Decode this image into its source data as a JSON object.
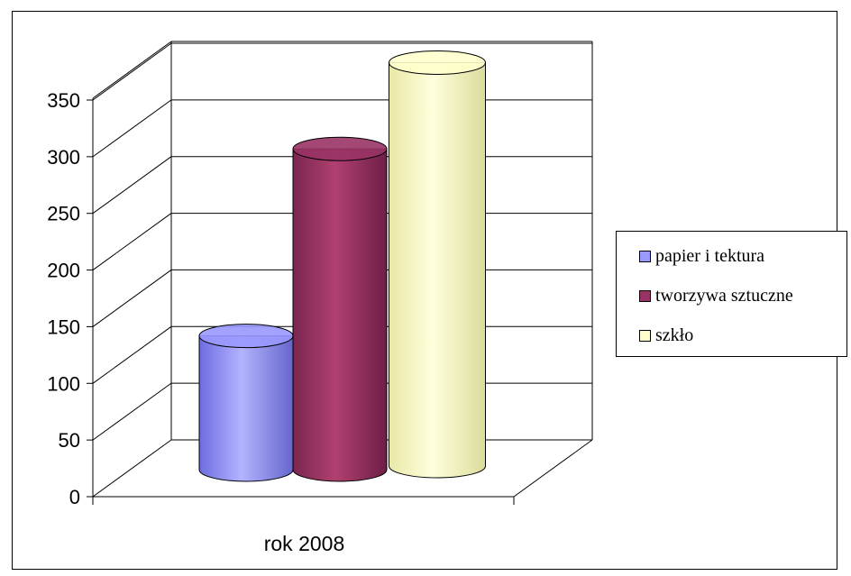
{
  "chart_data": {
    "type": "bar",
    "style": "3d-cylinder",
    "title": "",
    "xlabel": "",
    "ylabel": "",
    "categories": [
      "rok 2008"
    ],
    "series": [
      {
        "name": "papier i tektura",
        "values": [
          118
        ],
        "color": "#9999ff"
      },
      {
        "name": "tworzywa sztuczne",
        "values": [
          283
        ],
        "color": "#993366"
      },
      {
        "name": "szkło",
        "values": [
          356
        ],
        "color": "#ffffcc"
      }
    ],
    "ylim": [
      0,
      350
    ],
    "yticks": [
      "0",
      "50",
      "100",
      "150",
      "200",
      "250",
      "300",
      "350"
    ],
    "grid": true,
    "legend": "right"
  }
}
